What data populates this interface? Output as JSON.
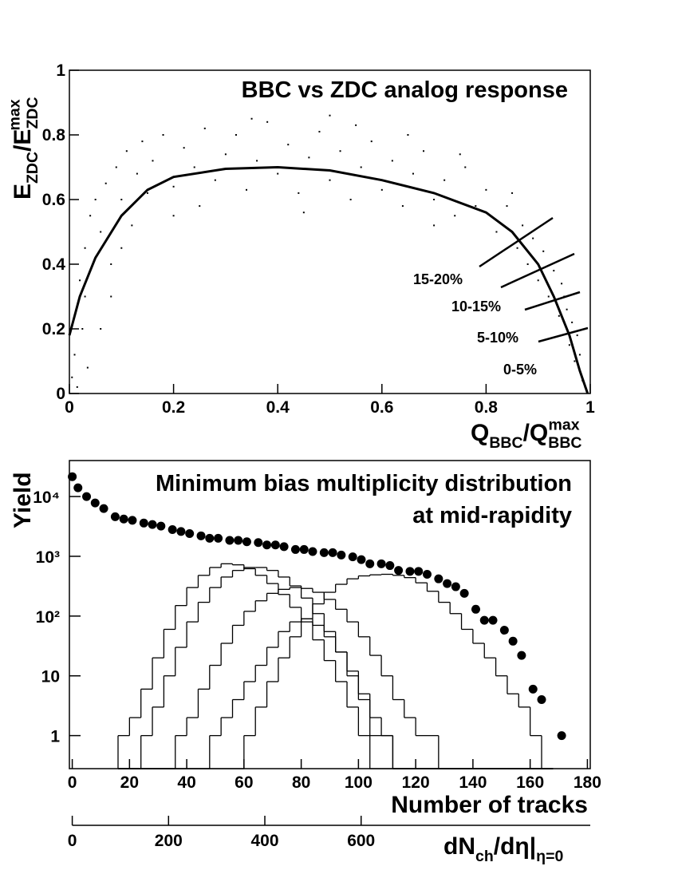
{
  "chart_data": [
    {
      "type": "scatter",
      "title": "BBC vs ZDC analog response",
      "xlabel_parts": [
        "Q",
        "BBC",
        "/Q",
        "BBC",
        "max"
      ],
      "ylabel_parts": [
        "E",
        "ZDC",
        "/E",
        "ZDC",
        "max"
      ],
      "xlim": [
        0,
        1
      ],
      "ylim": [
        0,
        1
      ],
      "xticks": [
        0,
        0.2,
        0.4,
        0.6,
        0.8,
        1
      ],
      "yticks": [
        0,
        0.2,
        0.4,
        0.6,
        0.8,
        1
      ],
      "color": "#000000",
      "x": [
        0.005,
        0.01,
        0.012,
        0.02,
        0.015,
        0.03,
        0.025,
        0.04,
        0.035,
        0.05,
        0.06,
        0.07,
        0.08,
        0.09,
        0.1,
        0.11,
        0.12,
        0.13,
        0.14,
        0.15,
        0.16,
        0.18,
        0.2,
        0.22,
        0.24,
        0.26,
        0.28,
        0.3,
        0.32,
        0.34,
        0.36,
        0.38,
        0.4,
        0.42,
        0.44,
        0.46,
        0.48,
        0.5,
        0.52,
        0.54,
        0.56,
        0.58,
        0.6,
        0.62,
        0.64,
        0.66,
        0.68,
        0.7,
        0.72,
        0.74,
        0.76,
        0.78,
        0.8,
        0.82,
        0.84,
        0.86,
        0.87,
        0.88,
        0.89,
        0.9,
        0.91,
        0.92,
        0.93,
        0.94,
        0.95,
        0.96,
        0.965,
        0.97,
        0.98,
        0.985,
        0.99,
        0.975,
        0.955,
        0.945,
        0.2,
        0.35,
        0.55,
        0.65,
        0.75,
        0.1,
        0.08,
        0.06,
        0.03,
        0.25,
        0.45,
        0.5,
        0.7,
        0.85
      ],
      "y": [
        0.05,
        0.12,
        0.25,
        0.35,
        0.02,
        0.45,
        0.2,
        0.55,
        0.08,
        0.6,
        0.5,
        0.65,
        0.4,
        0.7,
        0.6,
        0.75,
        0.52,
        0.68,
        0.78,
        0.62,
        0.72,
        0.8,
        0.64,
        0.76,
        0.7,
        0.82,
        0.66,
        0.74,
        0.8,
        0.63,
        0.72,
        0.84,
        0.68,
        0.77,
        0.62,
        0.73,
        0.81,
        0.66,
        0.75,
        0.6,
        0.7,
        0.78,
        0.63,
        0.72,
        0.58,
        0.68,
        0.75,
        0.6,
        0.66,
        0.55,
        0.7,
        0.58,
        0.63,
        0.5,
        0.58,
        0.45,
        0.52,
        0.4,
        0.48,
        0.35,
        0.44,
        0.3,
        0.38,
        0.24,
        0.3,
        0.15,
        0.22,
        0.1,
        0.12,
        0.04,
        0.02,
        0.18,
        0.26,
        0.34,
        0.55,
        0.85,
        0.83,
        0.8,
        0.74,
        0.45,
        0.3,
        0.2,
        0.3,
        0.58,
        0.56,
        0.86,
        0.52,
        0.62
      ],
      "curve": {
        "x": [
          0,
          0.02,
          0.05,
          0.1,
          0.15,
          0.2,
          0.3,
          0.4,
          0.5,
          0.6,
          0.7,
          0.8,
          0.85,
          0.9,
          0.93,
          0.96,
          0.98,
          0.995
        ],
        "y": [
          0.18,
          0.3,
          0.42,
          0.55,
          0.63,
          0.67,
          0.695,
          0.7,
          0.69,
          0.66,
          0.62,
          0.56,
          0.5,
          0.4,
          0.3,
          0.18,
          0.07,
          0
        ]
      },
      "annotations": [
        "15-20%",
        "10-15%",
        "5-10%",
        "0-5%"
      ]
    },
    {
      "type": "histogram",
      "title": [
        "Minimum bias multiplicity distribution",
        "at mid-rapidity"
      ],
      "xlabel": "Number of tracks",
      "ylabel": "Yield",
      "xlim": [
        -1,
        181
      ],
      "ylim": [
        0.28,
        40000
      ],
      "log_y": true,
      "xticks": [
        0,
        20,
        40,
        60,
        80,
        100,
        120,
        140,
        160,
        180
      ],
      "yticks": [
        1,
        10,
        {
          "value": 100,
          "label": "10²"
        },
        {
          "value": 1000,
          "label": "10³"
        },
        {
          "value": 10000,
          "label": "10⁴"
        }
      ],
      "x2lim": [
        0,
        1070
      ],
      "x2ticks": [
        0,
        200,
        400,
        600
      ],
      "x2label_parts": [
        "dN",
        "ch",
        "/dη|",
        "η=0"
      ],
      "color": "#000000",
      "bins": [
        16,
        20,
        24,
        28,
        32,
        36,
        40,
        44,
        48,
        52,
        56,
        60,
        64,
        68,
        72,
        76,
        80,
        84,
        88,
        92,
        96,
        100,
        104,
        108,
        112,
        116,
        120,
        124,
        128,
        132,
        136,
        140,
        144,
        148,
        152,
        156,
        160,
        164,
        168
      ],
      "series": [
        {
          "values": [
            1,
            2,
            6,
            20,
            60,
            150,
            300,
            480,
            650,
            750,
            720,
            620,
            480,
            350,
            230,
            140,
            80,
            40,
            18,
            8,
            3,
            1,
            0,
            0,
            0,
            0,
            0,
            0,
            0,
            0,
            0,
            0,
            0,
            0,
            0,
            0,
            0,
            0
          ]
        },
        {
          "values": [
            0,
            0,
            1,
            3,
            10,
            30,
            80,
            170,
            300,
            450,
            580,
            650,
            650,
            580,
            450,
            320,
            200,
            110,
            55,
            25,
            10,
            4,
            1,
            1,
            0,
            0,
            0,
            0,
            0,
            0,
            0,
            0,
            0,
            0,
            0,
            0,
            0,
            0
          ]
        },
        {
          "values": [
            0,
            0,
            0,
            0,
            0,
            1,
            2,
            6,
            15,
            35,
            70,
            120,
            180,
            240,
            280,
            300,
            290,
            250,
            190,
            130,
            80,
            45,
            22,
            10,
            4,
            2,
            1,
            1,
            0,
            0,
            0,
            0,
            0,
            0,
            0,
            0,
            0,
            0
          ]
        },
        {
          "values": [
            0,
            0,
            0,
            0,
            0,
            0,
            0,
            0,
            1,
            2,
            4,
            8,
            15,
            30,
            55,
            80,
            90,
            70,
            45,
            25,
            12,
            5,
            2,
            1,
            0,
            0,
            0,
            0,
            0,
            0,
            0,
            0,
            0,
            0,
            0,
            0,
            0,
            0
          ]
        },
        {
          "values": [
            0,
            0,
            0,
            0,
            0,
            0,
            0,
            0,
            0,
            0,
            0,
            1,
            3,
            8,
            20,
            45,
            90,
            160,
            250,
            340,
            420,
            470,
            490,
            500,
            480,
            440,
            360,
            260,
            170,
            110,
            60,
            35,
            20,
            10,
            5,
            3,
            1,
            0
          ]
        }
      ],
      "points": {
        "x": [
          0,
          2,
          5,
          8,
          11,
          15,
          18,
          21,
          25,
          28,
          31,
          35,
          38,
          41,
          45,
          48,
          51,
          55,
          58,
          61,
          65,
          68,
          71,
          74,
          78,
          81,
          84,
          88,
          91,
          94,
          98,
          101,
          104,
          108,
          111,
          114,
          118,
          121,
          124,
          128,
          131,
          134,
          137,
          141,
          144,
          147,
          151,
          154,
          157,
          161,
          164,
          171
        ],
        "y": [
          21500,
          14000,
          10000,
          7800,
          6300,
          4600,
          4200,
          4000,
          3600,
          3400,
          3200,
          2800,
          2600,
          2400,
          2200,
          2000,
          2000,
          1850,
          1850,
          1750,
          1700,
          1550,
          1550,
          1450,
          1300,
          1300,
          1200,
          1150,
          1150,
          1050,
          980,
          880,
          750,
          750,
          700,
          580,
          560,
          560,
          500,
          420,
          350,
          310,
          240,
          130,
          85,
          85,
          58,
          38,
          22,
          6,
          4,
          1
        ]
      }
    }
  ]
}
